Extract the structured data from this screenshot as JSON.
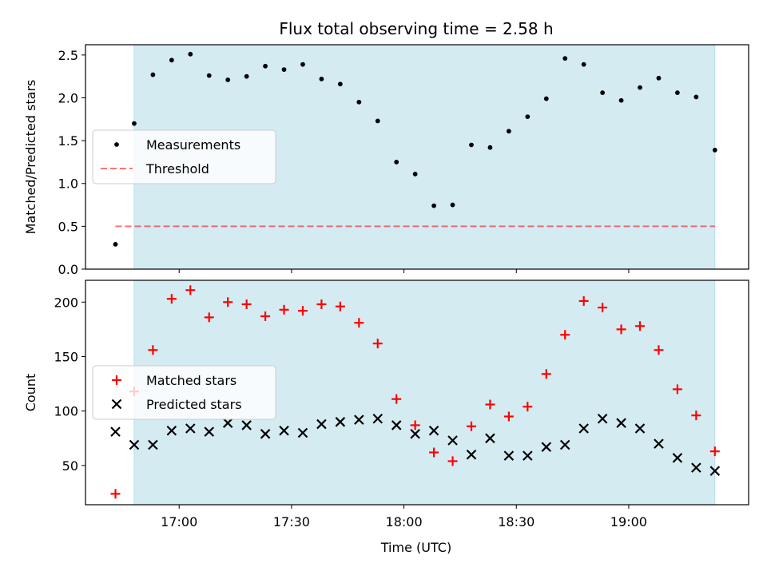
{
  "figure": {
    "title": "Flux total observing time = 2.58 h",
    "xlabel": "Time (UTC)"
  },
  "colors": {
    "shade": "#add8e6",
    "measurement": "#000000",
    "threshold": "#ff0000",
    "matched": "#ff0000",
    "predicted": "#000000"
  },
  "chart_data": [
    {
      "type": "scatter",
      "ylabel": "Matched/Predicted stars",
      "ylim": [
        0,
        2.62
      ],
      "yticks": [
        0.0,
        0.5,
        1.0,
        1.5,
        2.0,
        2.5
      ],
      "ytick_labels": [
        "0.0",
        "0.5",
        "1.0",
        "1.5",
        "2.0",
        "2.5"
      ],
      "xlim": [
        "16:35",
        "19:32"
      ],
      "xticks": [
        "17:00",
        "17:30",
        "18:00",
        "18:30",
        "19:00"
      ],
      "shaded_span": [
        "16:48",
        "19:23"
      ],
      "legend": {
        "position": "center-left"
      },
      "series": [
        {
          "name": "Measurements",
          "marker": "dot",
          "x": [
            "16:43",
            "16:48",
            "16:53",
            "16:58",
            "17:03",
            "17:08",
            "17:13",
            "17:18",
            "17:23",
            "17:28",
            "17:33",
            "17:38",
            "17:43",
            "17:48",
            "17:53",
            "17:58",
            "18:03",
            "18:08",
            "18:13",
            "18:18",
            "18:23",
            "18:28",
            "18:33",
            "18:38",
            "18:43",
            "18:48",
            "18:53",
            "18:58",
            "19:03",
            "19:08",
            "19:13",
            "19:18",
            "19:23"
          ],
          "y": [
            0.29,
            1.7,
            2.27,
            2.44,
            2.51,
            2.26,
            2.21,
            2.25,
            2.37,
            2.33,
            2.39,
            2.22,
            2.16,
            1.95,
            1.73,
            1.25,
            1.11,
            0.74,
            0.75,
            1.45,
            1.42,
            1.61,
            1.78,
            1.99,
            2.46,
            2.39,
            2.06,
            1.97,
            2.12,
            2.23,
            2.06,
            2.01,
            1.39
          ]
        },
        {
          "name": "Threshold",
          "style": "dashed-line",
          "x": [
            "16:43",
            "19:23"
          ],
          "y": [
            0.5,
            0.5
          ]
        }
      ]
    },
    {
      "type": "scatter",
      "ylabel": "Count",
      "ylim": [
        14,
        220
      ],
      "yticks": [
        50,
        100,
        150,
        200
      ],
      "ytick_labels": [
        "50",
        "100",
        "150",
        "200"
      ],
      "xlim": [
        "16:35",
        "19:32"
      ],
      "xticks": [
        "17:00",
        "17:30",
        "18:00",
        "18:30",
        "19:00"
      ],
      "xtick_labels": [
        "17:00",
        "17:30",
        "18:00",
        "18:30",
        "19:00"
      ],
      "shaded_span": [
        "16:48",
        "19:23"
      ],
      "legend": {
        "position": "center-left"
      },
      "series": [
        {
          "name": "Matched stars",
          "marker": "plus",
          "x": [
            "16:43",
            "16:48",
            "16:53",
            "16:58",
            "17:03",
            "17:08",
            "17:13",
            "17:18",
            "17:23",
            "17:28",
            "17:33",
            "17:38",
            "17:43",
            "17:48",
            "17:53",
            "17:58",
            "18:03",
            "18:08",
            "18:13",
            "18:18",
            "18:23",
            "18:28",
            "18:33",
            "18:38",
            "18:43",
            "18:48",
            "18:53",
            "18:58",
            "19:03",
            "19:08",
            "19:13",
            "19:18",
            "19:23"
          ],
          "y": [
            24,
            118,
            156,
            203,
            211,
            186,
            200,
            198,
            187,
            193,
            192,
            198,
            196,
            181,
            162,
            111,
            87,
            62,
            54,
            86,
            106,
            95,
            104,
            134,
            170,
            201,
            195,
            175,
            178,
            156,
            120,
            96,
            63
          ]
        },
        {
          "name": "Predicted stars",
          "marker": "x",
          "x": [
            "16:43",
            "16:48",
            "16:53",
            "16:58",
            "17:03",
            "17:08",
            "17:13",
            "17:18",
            "17:23",
            "17:28",
            "17:33",
            "17:38",
            "17:43",
            "17:48",
            "17:53",
            "17:58",
            "18:03",
            "18:08",
            "18:13",
            "18:18",
            "18:23",
            "18:28",
            "18:33",
            "18:38",
            "18:43",
            "18:48",
            "18:53",
            "18:58",
            "19:03",
            "19:08",
            "19:13",
            "19:18",
            "19:23"
          ],
          "y": [
            81,
            69,
            69,
            82,
            84,
            81,
            89,
            87,
            79,
            82,
            80,
            88,
            90,
            92,
            93,
            87,
            79,
            82,
            73,
            60,
            75,
            59,
            59,
            67,
            69,
            84,
            93,
            89,
            84,
            70,
            57,
            48,
            45
          ]
        }
      ]
    }
  ]
}
